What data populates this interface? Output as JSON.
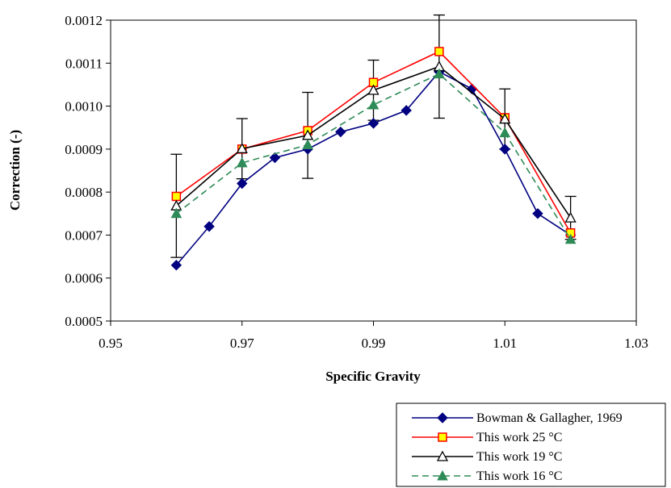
{
  "chart_data": {
    "type": "line",
    "title": "",
    "xlabel": "Specific Gravity",
    "ylabel": "Correction (-)",
    "xlim": [
      0.95,
      1.03
    ],
    "ylim": [
      0.0005,
      0.0012
    ],
    "x_ticks": [
      "0.95",
      "0.97",
      "0.99",
      "1.01",
      "1.03"
    ],
    "y_ticks": [
      "0.0005",
      "0.0006",
      "0.0007",
      "0.0008",
      "0.0009",
      "0.0010",
      "0.0011",
      "0.0012"
    ],
    "grid": false,
    "legend_position": "bottom-right",
    "series": [
      {
        "name": "Bowman & Gallagher, 1969",
        "color": "#000080",
        "marker": "diamond",
        "line": "solid",
        "x": [
          0.96,
          0.965,
          0.97,
          0.975,
          0.98,
          0.985,
          0.99,
          0.995,
          1.0,
          1.005,
          1.01,
          1.015,
          1.02
        ],
        "y": [
          0.00063,
          0.00072,
          0.00082,
          0.00088,
          0.0009,
          0.00094,
          0.00096,
          0.00099,
          0.00108,
          0.00104,
          0.0009,
          0.00075,
          0.0007
        ]
      },
      {
        "name": "This work 25 °C",
        "color": "#ff0000",
        "marker": "square",
        "marker_fill": "#ffff00",
        "line": "solid",
        "x": [
          0.96,
          0.97,
          0.98,
          0.99,
          1.0,
          1.01,
          1.02
        ],
        "y": [
          0.00079,
          0.0009,
          0.000943,
          0.001055,
          0.001127,
          0.000973,
          0.000705
        ]
      },
      {
        "name": "This work 19 °C",
        "color": "#000000",
        "marker": "open-triangle",
        "line": "solid",
        "x": [
          0.96,
          0.97,
          0.98,
          0.99,
          1.0,
          1.01,
          1.02
        ],
        "y": [
          0.000768,
          0.000901,
          0.000932,
          0.001037,
          0.001092,
          0.00097,
          0.00074
        ],
        "error": [
          0.00012,
          7e-05,
          0.0001,
          7e-05,
          0.00012,
          7e-05,
          5e-05
        ]
      },
      {
        "name": "This work 16 °C",
        "color": "#2e8b57",
        "marker": "filled-triangle",
        "line": "dashed",
        "x": [
          0.96,
          0.97,
          0.98,
          0.99,
          1.0,
          1.01,
          1.02
        ],
        "y": [
          0.00075,
          0.000868,
          0.00091,
          0.001003,
          0.001075,
          0.000938,
          0.00069
        ]
      }
    ]
  }
}
